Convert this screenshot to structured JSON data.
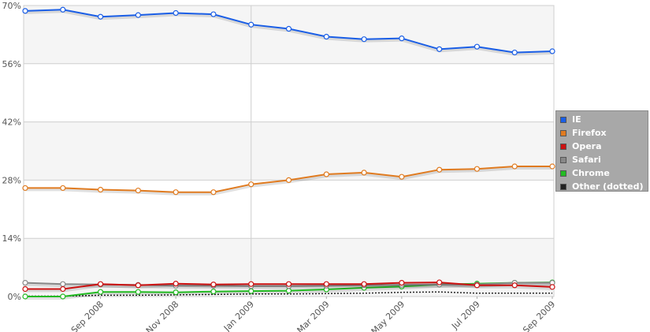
{
  "chart_data": {
    "type": "line",
    "title": "",
    "xlabel": "",
    "ylabel": "",
    "ylim": [
      0,
      70
    ],
    "y_unit": "%",
    "yticks": [
      "0%",
      "14%",
      "28%",
      "42%",
      "56%",
      "70%"
    ],
    "x": [
      "Jul 2008",
      "Aug 2008",
      "Sep 2008",
      "Oct 2008",
      "Nov 2008",
      "Dec 2008",
      "Jan 2009",
      "Feb 2009",
      "Mar 2009",
      "Apr 2009",
      "May 2009",
      "Jun 2009",
      "Jul 2009",
      "Aug 2009",
      "Sep 2009"
    ],
    "xtick_labels": [
      "Sep 2008",
      "Nov 2008",
      "Jan 2009",
      "Mar 2009",
      "May 2009",
      "Jul 2009",
      "Sep 2009"
    ],
    "grid": true,
    "alternating_bands": true,
    "legend_position": "right",
    "series": [
      {
        "name": "IE",
        "color": "#1a5ee6",
        "dotted": false,
        "values": [
          68.7,
          69.0,
          67.3,
          67.7,
          68.2,
          67.9,
          65.4,
          64.4,
          62.5,
          61.9,
          62.1,
          59.5,
          60.1,
          58.7,
          59.0
        ]
      },
      {
        "name": "Firefox",
        "color": "#e07b20",
        "dotted": false,
        "values": [
          26.1,
          26.1,
          25.7,
          25.5,
          25.1,
          25.1,
          27.0,
          28.0,
          29.4,
          29.8,
          28.8,
          30.5,
          30.7,
          31.3,
          31.3
        ]
      },
      {
        "name": "Opera",
        "color": "#cc1111",
        "dotted": false,
        "values": [
          1.8,
          1.8,
          3.0,
          2.7,
          3.1,
          2.9,
          3.0,
          3.0,
          3.0,
          3.0,
          3.3,
          3.4,
          2.7,
          2.7,
          2.3
        ]
      },
      {
        "name": "Safari",
        "color": "#888888",
        "dotted": false,
        "values": [
          3.3,
          3.0,
          2.9,
          2.8,
          2.6,
          2.6,
          2.5,
          2.5,
          2.6,
          2.7,
          2.8,
          2.9,
          2.9,
          3.3,
          3.3
        ]
      },
      {
        "name": "Chrome",
        "color": "#22bb22",
        "dotted": false,
        "values": [
          0.0,
          0.0,
          1.1,
          1.1,
          1.0,
          1.2,
          1.3,
          1.4,
          1.7,
          2.1,
          2.4,
          2.9,
          3.1,
          3.3,
          3.4
        ]
      },
      {
        "name": "Other (dotted)",
        "color": "#222222",
        "dotted": true,
        "values": [
          0.1,
          0.1,
          0.3,
          0.3,
          0.4,
          0.5,
          0.6,
          0.6,
          0.7,
          0.8,
          1.0,
          1.1,
          0.8,
          0.8,
          0.8
        ]
      }
    ]
  }
}
